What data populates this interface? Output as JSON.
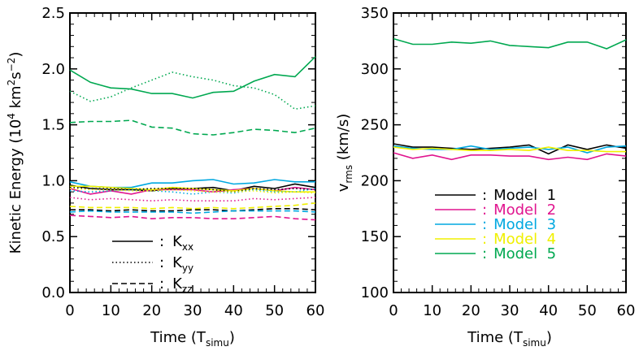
{
  "chart_data": [
    {
      "type": "line",
      "xlabel": "Time (T",
      "xlabel_sub": "simu",
      "xlabel_end": ")",
      "ylabel": "Kinetic Energy (10",
      "ylabel_sup1": "4",
      "ylabel_mid": " km",
      "ylabel_sup2": "2",
      "ylabel_mid2": "s",
      "ylabel_sup3": "−2",
      "ylabel_end": ")",
      "xlim": [
        0,
        60
      ],
      "ylim": [
        0,
        2.5
      ],
      "xticks": [
        "0",
        "10",
        "20",
        "30",
        "40",
        "50",
        "60"
      ],
      "yticks": [
        "0.0",
        "0.5",
        "1.0",
        "1.5",
        "2.0",
        "2.5"
      ],
      "x": [
        0,
        5,
        10,
        15,
        20,
        25,
        30,
        35,
        40,
        45,
        50,
        55,
        60
      ],
      "legend": [
        {
          "sep": ":",
          "name": "K",
          "sub": "xx",
          "dash": "solid"
        },
        {
          "sep": ":",
          "name": "K",
          "sub": "yy",
          "dash": "dotted"
        },
        {
          "sep": ":",
          "name": "K",
          "sub": "zz",
          "dash": "dashed"
        }
      ],
      "series": [
        {
          "color": "#000000",
          "dash": "solid",
          "values": [
            0.96,
            0.93,
            0.92,
            0.92,
            0.91,
            0.93,
            0.93,
            0.94,
            0.91,
            0.95,
            0.93,
            0.97,
            0.94
          ]
        },
        {
          "color": "#e0158f",
          "dash": "solid",
          "values": [
            0.93,
            0.88,
            0.91,
            0.88,
            0.92,
            0.92,
            0.92,
            0.9,
            0.92,
            0.93,
            0.91,
            0.94,
            0.92
          ]
        },
        {
          "color": "#00a8e0",
          "dash": "solid",
          "values": [
            0.99,
            0.95,
            0.94,
            0.94,
            0.98,
            0.98,
            1.0,
            1.01,
            0.97,
            0.98,
            1.01,
            0.99,
            0.99
          ]
        },
        {
          "color": "#f0f000",
          "dash": "solid",
          "values": [
            0.95,
            0.95,
            0.94,
            0.93,
            0.92,
            0.94,
            0.93,
            0.92,
            0.91,
            0.93,
            0.91,
            0.9,
            0.9
          ]
        },
        {
          "color": "#00a850",
          "dash": "solid",
          "values": [
            1.99,
            1.88,
            1.83,
            1.82,
            1.78,
            1.78,
            1.74,
            1.79,
            1.8,
            1.89,
            1.95,
            1.93,
            2.11
          ]
        },
        {
          "color": "#000000",
          "dash": "dotted",
          "values": [
            0.94,
            0.93,
            0.93,
            0.92,
            0.93,
            0.93,
            0.93,
            0.92,
            0.9,
            0.93,
            0.92,
            0.93,
            0.92
          ]
        },
        {
          "color": "#e0158f",
          "dash": "dotted",
          "values": [
            0.85,
            0.83,
            0.84,
            0.83,
            0.82,
            0.83,
            0.82,
            0.82,
            0.82,
            0.84,
            0.83,
            0.84,
            0.85
          ]
        },
        {
          "color": "#00a8e0",
          "dash": "dotted",
          "values": [
            0.91,
            0.9,
            0.91,
            0.92,
            0.91,
            0.9,
            0.88,
            0.9,
            0.89,
            0.92,
            0.9,
            0.9,
            0.93
          ]
        },
        {
          "color": "#f0f000",
          "dash": "dotted",
          "values": [
            0.93,
            0.92,
            0.92,
            0.91,
            0.91,
            0.92,
            0.91,
            0.9,
            0.9,
            0.91,
            0.89,
            0.9,
            0.89
          ]
        },
        {
          "color": "#00a850",
          "dash": "dotted",
          "values": [
            1.8,
            1.71,
            1.75,
            1.83,
            1.9,
            1.97,
            1.93,
            1.9,
            1.85,
            1.83,
            1.77,
            1.64,
            1.67
          ]
        },
        {
          "color": "#000000",
          "dash": "dashed",
          "values": [
            0.74,
            0.74,
            0.73,
            0.74,
            0.73,
            0.73,
            0.74,
            0.74,
            0.73,
            0.74,
            0.75,
            0.75,
            0.74
          ]
        },
        {
          "color": "#e0158f",
          "dash": "dashed",
          "values": [
            0.69,
            0.68,
            0.67,
            0.68,
            0.66,
            0.67,
            0.67,
            0.66,
            0.66,
            0.67,
            0.68,
            0.66,
            0.65
          ]
        },
        {
          "color": "#00a8e0",
          "dash": "dashed",
          "values": [
            0.72,
            0.73,
            0.72,
            0.72,
            0.72,
            0.72,
            0.71,
            0.72,
            0.73,
            0.73,
            0.73,
            0.73,
            0.72
          ]
        },
        {
          "color": "#f0f000",
          "dash": "dashed",
          "values": [
            0.77,
            0.76,
            0.76,
            0.76,
            0.75,
            0.76,
            0.75,
            0.76,
            0.75,
            0.76,
            0.77,
            0.78,
            0.8
          ]
        },
        {
          "color": "#00a850",
          "dash": "dashed",
          "values": [
            1.52,
            1.53,
            1.53,
            1.54,
            1.48,
            1.47,
            1.42,
            1.41,
            1.43,
            1.46,
            1.45,
            1.43,
            1.47
          ]
        }
      ]
    },
    {
      "type": "line",
      "xlabel": "Time (T",
      "xlabel_sub": "simu",
      "xlabel_end": ")",
      "ylabel": "v",
      "ylabel_sub": "rms",
      "ylabel_end": " (km/s)",
      "xlim": [
        0,
        60
      ],
      "ylim": [
        100,
        350
      ],
      "xticks": [
        "0",
        "10",
        "20",
        "30",
        "40",
        "50",
        "60"
      ],
      "yticks": [
        "100",
        "150",
        "200",
        "250",
        "300",
        "350"
      ],
      "x": [
        0,
        5,
        10,
        15,
        20,
        25,
        30,
        35,
        40,
        45,
        50,
        55,
        60
      ],
      "legend": [
        {
          "sep": ":",
          "name": "Model  1",
          "color": "#000000"
        },
        {
          "sep": ":",
          "name": "Model  2",
          "color": "#e0158f"
        },
        {
          "sep": ":",
          "name": "Model  3",
          "color": "#00a8e0"
        },
        {
          "sep": ":",
          "name": "Model  4",
          "color": "#f0f000"
        },
        {
          "sep": ":",
          "name": "Model  5",
          "color": "#00a850"
        }
      ],
      "series": [
        {
          "name": "Model  1",
          "color": "#000000",
          "values": [
            233,
            230,
            230,
            229,
            228,
            229,
            230,
            232,
            224,
            232,
            228,
            232,
            229
          ]
        },
        {
          "name": "Model  2",
          "color": "#e0158f",
          "values": [
            225,
            220,
            223,
            219,
            223,
            223,
            222,
            222,
            219,
            221,
            219,
            224,
            222
          ]
        },
        {
          "name": "Model  3",
          "color": "#00a8e0",
          "values": [
            231,
            229,
            228,
            228,
            231,
            228,
            229,
            230,
            228,
            230,
            225,
            230,
            231
          ]
        },
        {
          "name": "Model  4",
          "color": "#f0f000",
          "values": [
            230,
            228,
            229,
            228,
            227,
            227,
            228,
            227,
            230,
            227,
            227,
            226,
            226
          ]
        },
        {
          "name": "Model  5",
          "color": "#00a850",
          "values": [
            327,
            322,
            322,
            324,
            323,
            325,
            321,
            320,
            319,
            324,
            324,
            318,
            326
          ]
        }
      ]
    }
  ]
}
